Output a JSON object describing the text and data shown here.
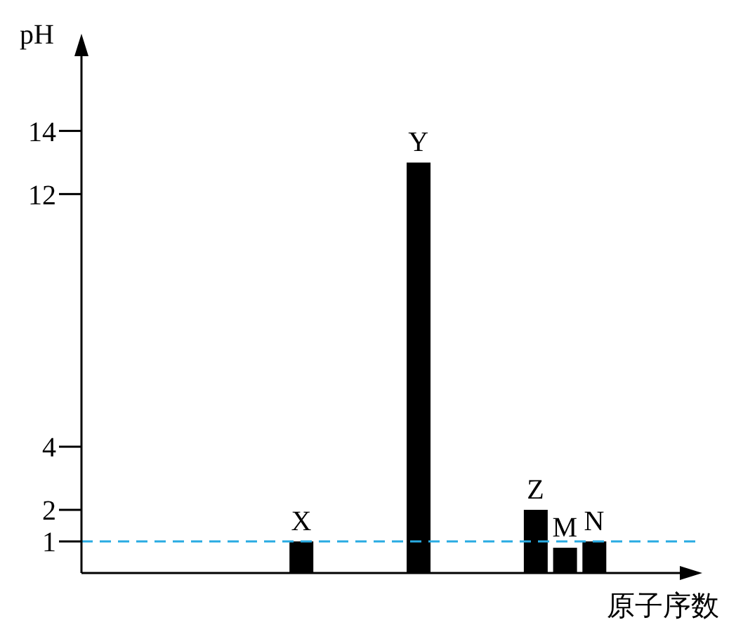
{
  "chart_data": {
    "type": "bar",
    "xlabel": "原子序数",
    "ylabel": "pH",
    "categories": [
      null,
      null,
      null,
      null,
      null,
      null,
      null,
      "X",
      null,
      null,
      null,
      "Y",
      null,
      null,
      null,
      "Z",
      "M",
      "N",
      null,
      null,
      null
    ],
    "values": [
      null,
      null,
      null,
      null,
      null,
      null,
      null,
      1,
      null,
      null,
      null,
      13,
      null,
      null,
      null,
      2,
      0.8,
      1,
      null,
      null,
      null
    ],
    "color": "#000000",
    "ylim": [
      0,
      16.9
    ],
    "yticks": [
      1,
      2,
      4,
      12,
      14
    ],
    "ref_lines": [
      {
        "axis": "y",
        "value": 1,
        "color": "#29abe2",
        "line_style": "dashed"
      }
    ],
    "grid": false,
    "legend": false
  }
}
